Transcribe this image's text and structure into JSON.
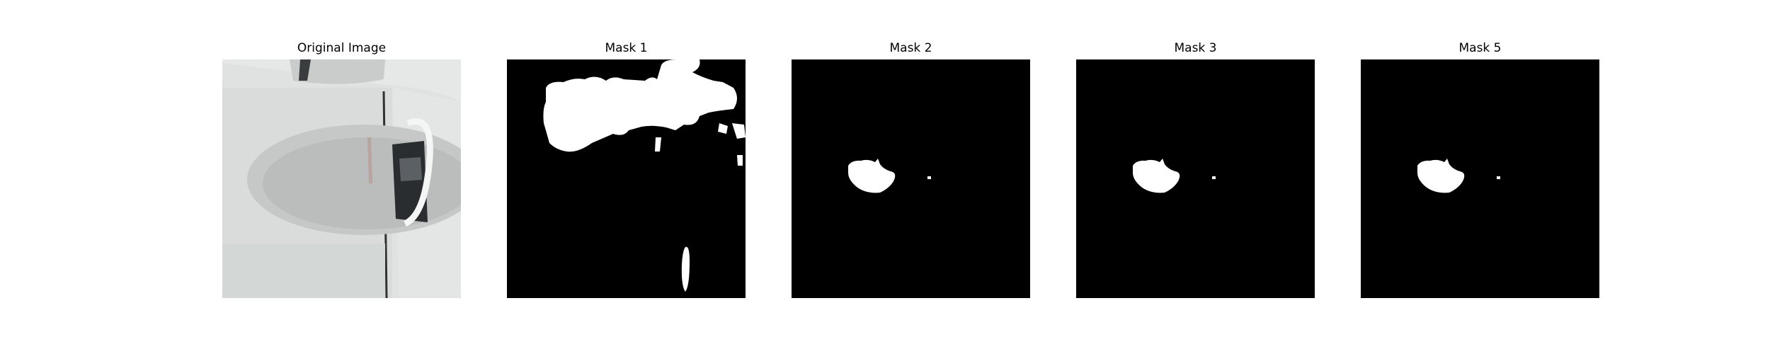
{
  "panels": [
    {
      "title": "Original Image"
    },
    {
      "title": "Mask 1"
    },
    {
      "title": "Mask 2"
    },
    {
      "title": "Mask 3"
    },
    {
      "title": "Mask 5"
    }
  ],
  "colors": {
    "background": "#ffffff",
    "mask_background": "#000000",
    "mask_foreground": "#ffffff"
  }
}
